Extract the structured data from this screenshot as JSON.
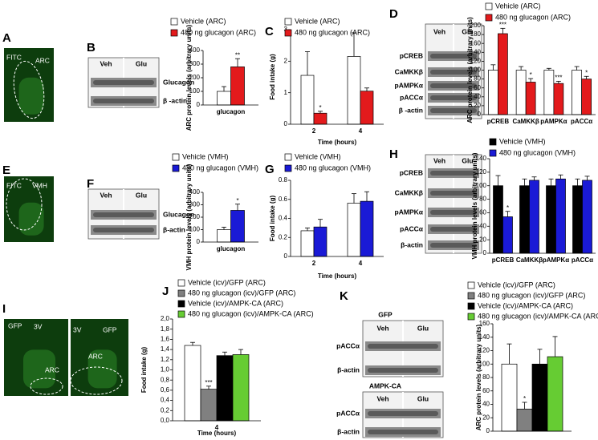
{
  "chart_data": [
    {
      "panel": "B",
      "type": "bar",
      "ylabel": "ARC protein levels (arbitrary units)",
      "categories": [
        "glucagon"
      ],
      "series": [
        {
          "name": "Vehicle (ARC)",
          "color": "#ffffff",
          "values": [
            100
          ],
          "errors": [
            35
          ],
          "annotations": [
            null
          ]
        },
        {
          "name": "480 ng glucagon (ARC)",
          "color": "#e31a1c",
          "values": [
            280
          ],
          "errors": [
            60
          ],
          "annotations": [
            "**"
          ]
        }
      ],
      "ylim": [
        0,
        400
      ],
      "yticks": [
        0,
        100,
        200,
        300,
        400
      ]
    },
    {
      "panel": "C",
      "type": "bar",
      "ylabel": "Food intake (g)",
      "xlabel": "Time (hours)",
      "categories": [
        "2",
        "4"
      ],
      "series": [
        {
          "name": "Vehicle (ARC)",
          "color": "#ffffff",
          "values": [
            1.55,
            2.15
          ],
          "errors": [
            0.75,
            0.75
          ],
          "annotations": [
            null,
            null
          ]
        },
        {
          "name": "480 ng glucagon (ARC)",
          "color": "#e31a1c",
          "values": [
            0.35,
            1.05
          ],
          "errors": [
            0.06,
            0.1
          ],
          "annotations": [
            "*",
            null
          ]
        }
      ],
      "ylim": [
        0,
        3
      ],
      "yticks": [
        0,
        1,
        2,
        3
      ]
    },
    {
      "panel": "D",
      "type": "bar",
      "ylabel": "ARC protein levels (arbitrary units)",
      "categories": [
        "pCREB",
        "CaMKKβ",
        "pAMPKα",
        "pACCα"
      ],
      "series": [
        {
          "name": "Vehicle (ARC)",
          "color": "#ffffff",
          "values": [
            100,
            100,
            100,
            100
          ],
          "errors": [
            12,
            8,
            4,
            8
          ],
          "annotations": [
            null,
            null,
            null,
            null
          ]
        },
        {
          "name": "480 ng glucagon (ARC)",
          "color": "#e31a1c",
          "values": [
            182,
            73,
            70,
            80
          ],
          "errors": [
            12,
            8,
            5,
            6
          ],
          "annotations": [
            "***",
            "*",
            "***",
            "*"
          ]
        }
      ],
      "ylim": [
        0,
        200
      ],
      "yticks": [
        0,
        20,
        40,
        60,
        80,
        100,
        120,
        140,
        160,
        180,
        200
      ]
    },
    {
      "panel": "F",
      "type": "bar",
      "ylabel": "VMH protein levels (arbitrary units)",
      "categories": [
        "glucagon"
      ],
      "series": [
        {
          "name": "Vehicle (VMH)",
          "color": "#ffffff",
          "values": [
            100
          ],
          "errors": [
            20
          ],
          "annotations": [
            null
          ]
        },
        {
          "name": "480 ng glucagon (VMH)",
          "color": "#1a1ad6",
          "values": [
            255
          ],
          "errors": [
            50
          ],
          "annotations": [
            "*"
          ]
        }
      ],
      "ylim": [
        0,
        400
      ],
      "yticks": [
        0,
        100,
        200,
        300,
        400
      ]
    },
    {
      "panel": "G",
      "type": "bar",
      "ylabel": "Food intake (g)",
      "xlabel": "Time (hours)",
      "categories": [
        "2",
        "4"
      ],
      "series": [
        {
          "name": "Vehicle (VMH)",
          "color": "#ffffff",
          "values": [
            0.27,
            0.56
          ],
          "errors": [
            0.03,
            0.1
          ],
          "annotations": [
            null,
            null
          ]
        },
        {
          "name": "480 ng glucagon (VMH)",
          "color": "#1a1ad6",
          "values": [
            0.31,
            0.58
          ],
          "errors": [
            0.08,
            0.1
          ],
          "annotations": [
            null,
            null
          ]
        }
      ],
      "ylim": [
        0,
        0.8
      ],
      "yticks": [
        0,
        0.2,
        0.4,
        0.6,
        0.8
      ]
    },
    {
      "panel": "H",
      "type": "bar",
      "ylabel": "VMH protein levels (arbitrary units)",
      "categories": [
        "pCREB",
        "CaMKKβ",
        "pAMPKα",
        "pACCα"
      ],
      "series": [
        {
          "name": "Vehicle (VMH)",
          "color": "#000000",
          "values": [
            100,
            100,
            100,
            100
          ],
          "errors": [
            15,
            10,
            10,
            10
          ],
          "annotations": [
            null,
            null,
            null,
            null
          ]
        },
        {
          "name": "480 ng glucagon (VMH)",
          "color": "#1a1ad6",
          "values": [
            54,
            108,
            110,
            108
          ],
          "errors": [
            8,
            5,
            6,
            6
          ],
          "annotations": [
            "*",
            null,
            null,
            null
          ]
        }
      ],
      "ylim": [
        0,
        140
      ],
      "yticks": [
        0,
        20,
        40,
        60,
        80,
        100,
        120,
        140
      ]
    },
    {
      "panel": "J",
      "type": "bar",
      "ylabel": "Food intake (g)",
      "xlabel": "Time (hours)",
      "categories": [
        "4"
      ],
      "series": [
        {
          "name": "Vehicle (icv)/GFP (ARC)",
          "color": "#ffffff",
          "values": [
            1.48
          ],
          "errors": [
            0.06
          ],
          "annotations": [
            null
          ]
        },
        {
          "name": "480 ng glucagon (icv)/GFP (ARC)",
          "color": "#808080",
          "values": [
            0.62
          ],
          "errors": [
            0.06
          ],
          "annotations": [
            "***"
          ]
        },
        {
          "name": "Vehicle (icv)/AMPK-CA (ARC)",
          "color": "#000000",
          "values": [
            1.28
          ],
          "errors": [
            0.07
          ],
          "annotations": [
            null
          ]
        },
        {
          "name": "480 ng glucagon (icv)/AMPK-CA (ARC)",
          "color": "#66cc33",
          "values": [
            1.3
          ],
          "errors": [
            0.1
          ],
          "annotations": [
            null
          ]
        }
      ],
      "ylim": [
        0,
        2
      ],
      "yticks": [
        {
          "value": 0,
          "label": "0,0"
        },
        {
          "value": 0.2,
          "label": "0,2"
        },
        {
          "value": 0.4,
          "label": "0,4"
        },
        {
          "value": 0.6,
          "label": "0,6"
        },
        {
          "value": 0.8,
          "label": "0,8"
        },
        {
          "value": 1,
          "label": "1,0"
        },
        {
          "value": 1.2,
          "label": "1,2"
        },
        {
          "value": 1.4,
          "label": "1,4"
        },
        {
          "value": 1.6,
          "label": "1,6"
        },
        {
          "value": 1.8,
          "label": "1,8"
        },
        {
          "value": 2,
          "label": "2,0"
        }
      ]
    },
    {
      "panel": "K",
      "type": "bar",
      "ylabel": "ARC protein levels (arbitrary units)",
      "categories": [
        null
      ],
      "series": [
        {
          "name": "Vehicle (icv)/GFP (ARC)",
          "color": "#ffffff",
          "values": [
            100
          ],
          "errors": [
            30
          ],
          "annotations": [
            null
          ]
        },
        {
          "name": "480 ng glucagon (icv)/GFP (ARC)",
          "color": "#808080",
          "values": [
            33
          ],
          "errors": [
            10
          ],
          "annotations": [
            "*"
          ]
        },
        {
          "name": "Vehicle (icv)/AMPK-CA (ARC)",
          "color": "#000000",
          "values": [
            100
          ],
          "errors": [
            22
          ],
          "annotations": [
            null
          ]
        },
        {
          "name": "480 ng glucagon (icv)/AMPK-CA (ARC)",
          "color": "#66cc33",
          "values": [
            111
          ],
          "errors": [
            30
          ],
          "annotations": [
            null
          ]
        }
      ],
      "ylim": [
        0,
        160
      ],
      "yticks": [
        0,
        20,
        40,
        60,
        80,
        100,
        120,
        140,
        160
      ]
    }
  ],
  "blots": [
    {
      "columns": [
        "Veh",
        "Glu"
      ],
      "rows": [
        "Glucagon",
        "β -actin"
      ]
    },
    {
      "columns": [
        "Veh",
        "Glu"
      ],
      "rows": [
        "pCREB",
        "CaMKKβ",
        "pAMPKα",
        "pACCα",
        "β -actin"
      ]
    },
    {
      "columns": [
        "Veh",
        "Glu"
      ],
      "rows": [
        "Glucagon",
        "β-actin"
      ]
    },
    {
      "columns": [
        "Veh",
        "Glu"
      ],
      "rows": [
        "pCREB",
        "CaMKKβ",
        "pAMPKα",
        "pACCα",
        "β-actin"
      ]
    },
    {
      "title": "GFP",
      "columns": [
        "Veh",
        "Glu"
      ],
      "rows": [
        "pACCα",
        "β-actin"
      ]
    },
    {
      "title": "AMPK-CA",
      "columns": [
        "Veh",
        "Glu"
      ],
      "rows": [
        "pACCα",
        "β-actin"
      ]
    }
  ],
  "images": [
    {
      "panel": "A",
      "labels": [
        "FITC",
        "ARC"
      ]
    },
    {
      "panel": "E",
      "labels": [
        "FITC",
        "VMH"
      ]
    },
    {
      "panel": "I",
      "labels": [
        "GFP",
        "3V",
        "ARC",
        "3V",
        "GFP",
        "ARC"
      ]
    }
  ]
}
